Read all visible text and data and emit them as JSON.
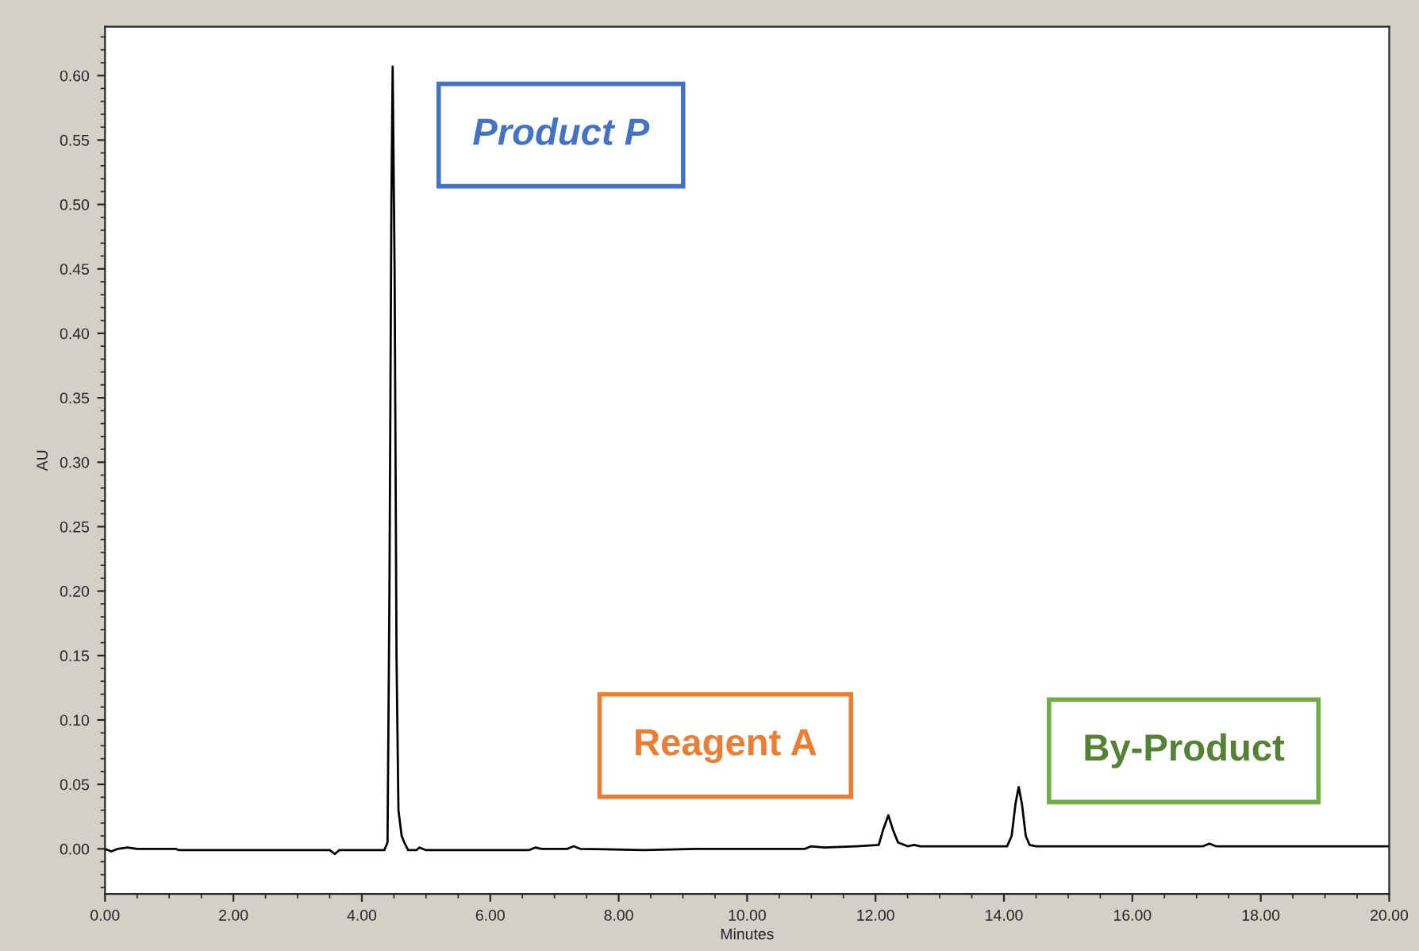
{
  "chart_data": {
    "type": "line",
    "xlabel": "Minutes",
    "ylabel": "AU",
    "series": [
      {
        "color": "#000000",
        "x": [
          0,
          0.05,
          0.1,
          0.2,
          0.35,
          0.5,
          1.1,
          1.15,
          3.5,
          3.58,
          3.65,
          4.35,
          4.4,
          4.43,
          4.46,
          4.48,
          4.51,
          4.54,
          4.57,
          4.62,
          4.66,
          4.72,
          4.85,
          4.9,
          5.0,
          6.6,
          6.7,
          6.8,
          7.2,
          7.3,
          7.4,
          8.4,
          9.2,
          10.9,
          11.0,
          11.2,
          11.7,
          12.05,
          12.12,
          12.2,
          12.27,
          12.35,
          12.5,
          12.6,
          12.7,
          14.05,
          14.12,
          14.18,
          14.23,
          14.28,
          14.34,
          14.4,
          14.5,
          15.3,
          17.1,
          17.2,
          17.3,
          20
        ],
        "values": [
          0.0,
          -0.001,
          -0.002,
          0.0,
          0.001,
          0.0,
          0.0,
          -0.001,
          -0.001,
          -0.004,
          -0.001,
          -0.001,
          0.005,
          0.2,
          0.5,
          0.607,
          0.45,
          0.15,
          0.03,
          0.01,
          0.005,
          -0.001,
          -0.001,
          0.001,
          -0.001,
          -0.001,
          0.001,
          0.0,
          0.0,
          0.002,
          0.0,
          -0.001,
          0.0,
          0.0,
          0.002,
          0.001,
          0.002,
          0.003,
          0.015,
          0.026,
          0.015,
          0.005,
          0.002,
          0.003,
          0.002,
          0.002,
          0.01,
          0.035,
          0.048,
          0.035,
          0.01,
          0.003,
          0.002,
          0.002,
          0.002,
          0.004,
          0.002,
          0.002
        ]
      }
    ],
    "xlim": [
      0,
      20
    ],
    "xticks": [
      {
        "value": 0,
        "label": "0.00"
      },
      {
        "value": 2,
        "label": "2.00"
      },
      {
        "value": 4,
        "label": "4.00"
      },
      {
        "value": 6,
        "label": "6.00"
      },
      {
        "value": 8,
        "label": "8.00"
      },
      {
        "value": 10,
        "label": "10.00"
      },
      {
        "value": 12,
        "label": "12.00"
      },
      {
        "value": 14,
        "label": "14.00"
      },
      {
        "value": 16,
        "label": "16.00"
      },
      {
        "value": 18,
        "label": "18.00"
      },
      {
        "value": 20,
        "label": "20.00"
      }
    ],
    "ylim": [
      -0.035,
      0.638
    ],
    "yticks": [
      {
        "value": 0,
        "label": "0.00"
      },
      {
        "value": 0.05,
        "label": "0.05"
      },
      {
        "value": 0.1,
        "label": "0.10"
      },
      {
        "value": 0.15,
        "label": "0.15"
      },
      {
        "value": 0.2,
        "label": "0.20"
      },
      {
        "value": 0.25,
        "label": "0.25"
      },
      {
        "value": 0.3,
        "label": "0.30"
      },
      {
        "value": 0.35,
        "label": "0.35"
      },
      {
        "value": 0.4,
        "label": "0.40"
      },
      {
        "value": 0.45,
        "label": "0.45"
      },
      {
        "value": 0.5,
        "label": "0.50"
      },
      {
        "value": 0.55,
        "label": "0.55"
      },
      {
        "value": 0.6,
        "label": "0.60"
      }
    ],
    "annotations": [
      "Product P",
      "Reagent A",
      "By-Product"
    ],
    "grid": false,
    "legend": false,
    "marker": "none",
    "line_style": "solid"
  }
}
